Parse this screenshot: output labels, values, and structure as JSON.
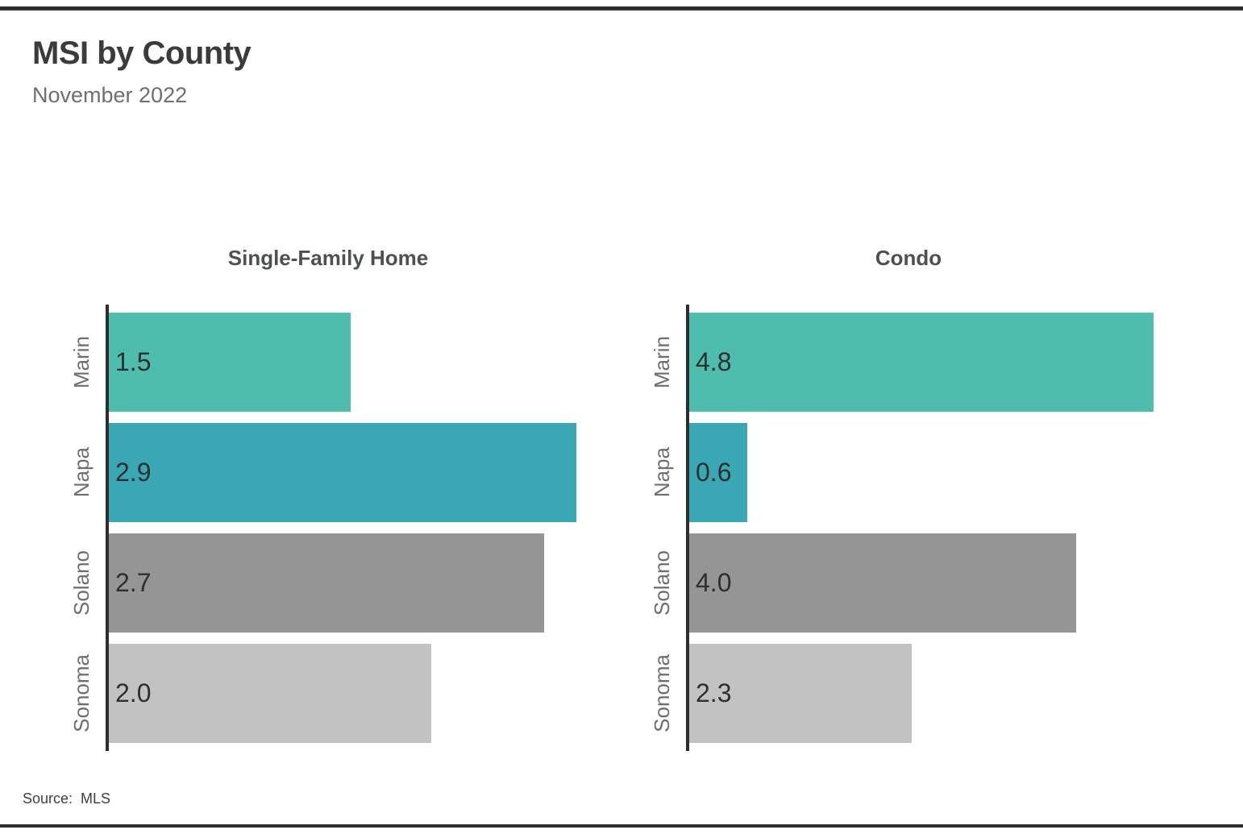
{
  "header": {
    "title": "MSI by County",
    "subtitle": "November 2022"
  },
  "footer": {
    "source_label": "Source:",
    "source_value": "MLS"
  },
  "colors": {
    "marin": "#4FBDAD",
    "napa": "#39A7B4",
    "solano": "#959595",
    "sonoma": "#C2C2C2",
    "axis": "#2E2E2E",
    "rule": "#2E2E2E",
    "title_text": "#3B3B3B",
    "subtitle_text": "#6F6F6F",
    "value_text": "#2F2F2F",
    "category_text": "#6E6E6E"
  },
  "chart_data": [
    {
      "type": "bar",
      "orientation": "horizontal",
      "title": "Single-Family Home",
      "categories": [
        "Marin",
        "Napa",
        "Solano",
        "Sonoma"
      ],
      "values": [
        1.5,
        2.9,
        2.7,
        2.0
      ],
      "value_labels": [
        "1.5",
        "2.9",
        "2.7",
        "2.0"
      ],
      "bar_colors": [
        "#4FBDAD",
        "#39A7B4",
        "#959595",
        "#C2C2C2"
      ],
      "xlim": [
        0,
        3.0
      ],
      "grid": false,
      "legend": false,
      "value_label_position": "inside-left",
      "category_label_rotation": 90
    },
    {
      "type": "bar",
      "orientation": "horizontal",
      "title": "Condo",
      "categories": [
        "Marin",
        "Napa",
        "Solano",
        "Sonoma"
      ],
      "values": [
        4.8,
        0.6,
        4.0,
        2.3
      ],
      "value_labels": [
        "4.8",
        "0.6",
        "4.0",
        "2.3"
      ],
      "bar_colors": [
        "#4FBDAD",
        "#39A7B4",
        "#959595",
        "#C2C2C2"
      ],
      "xlim": [
        0,
        5.0
      ],
      "grid": false,
      "legend": false,
      "value_label_position": "inside-left",
      "category_label_rotation": 90
    }
  ]
}
